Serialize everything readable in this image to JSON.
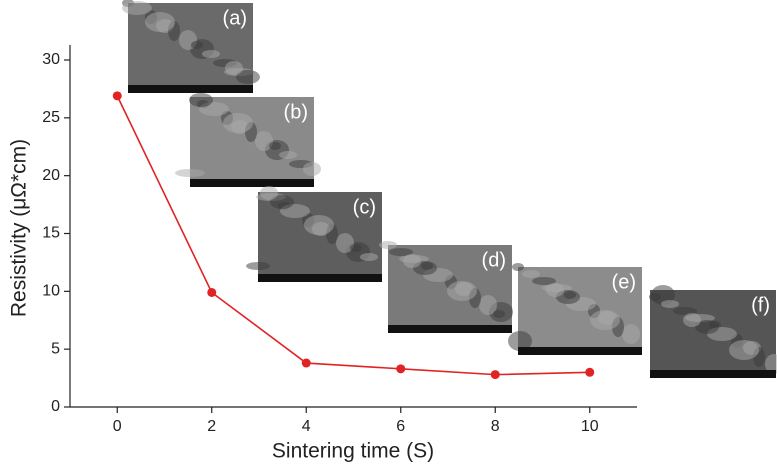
{
  "chart_data": {
    "type": "line",
    "x_label": "Sintering time (S)",
    "y_label": "Resistivity (μΩ*cm)",
    "x": [
      0,
      2,
      4,
      6,
      8,
      10
    ],
    "series": [
      {
        "name": "Resistivity",
        "color": "#e02424",
        "values": [
          26.9,
          9.9,
          3.8,
          3.3,
          2.8,
          3.0
        ]
      }
    ],
    "xlim": [
      -1,
      11
    ],
    "xticks": [
      0,
      2,
      4,
      6,
      8,
      10
    ],
    "ylim": [
      0,
      30
    ],
    "yticks": [
      0,
      5,
      10,
      15,
      20,
      25,
      30
    ],
    "annotations": [
      "(a)",
      "(b)",
      "(c)",
      "(d)",
      "(e)",
      "(f)"
    ],
    "grid": false
  }
}
